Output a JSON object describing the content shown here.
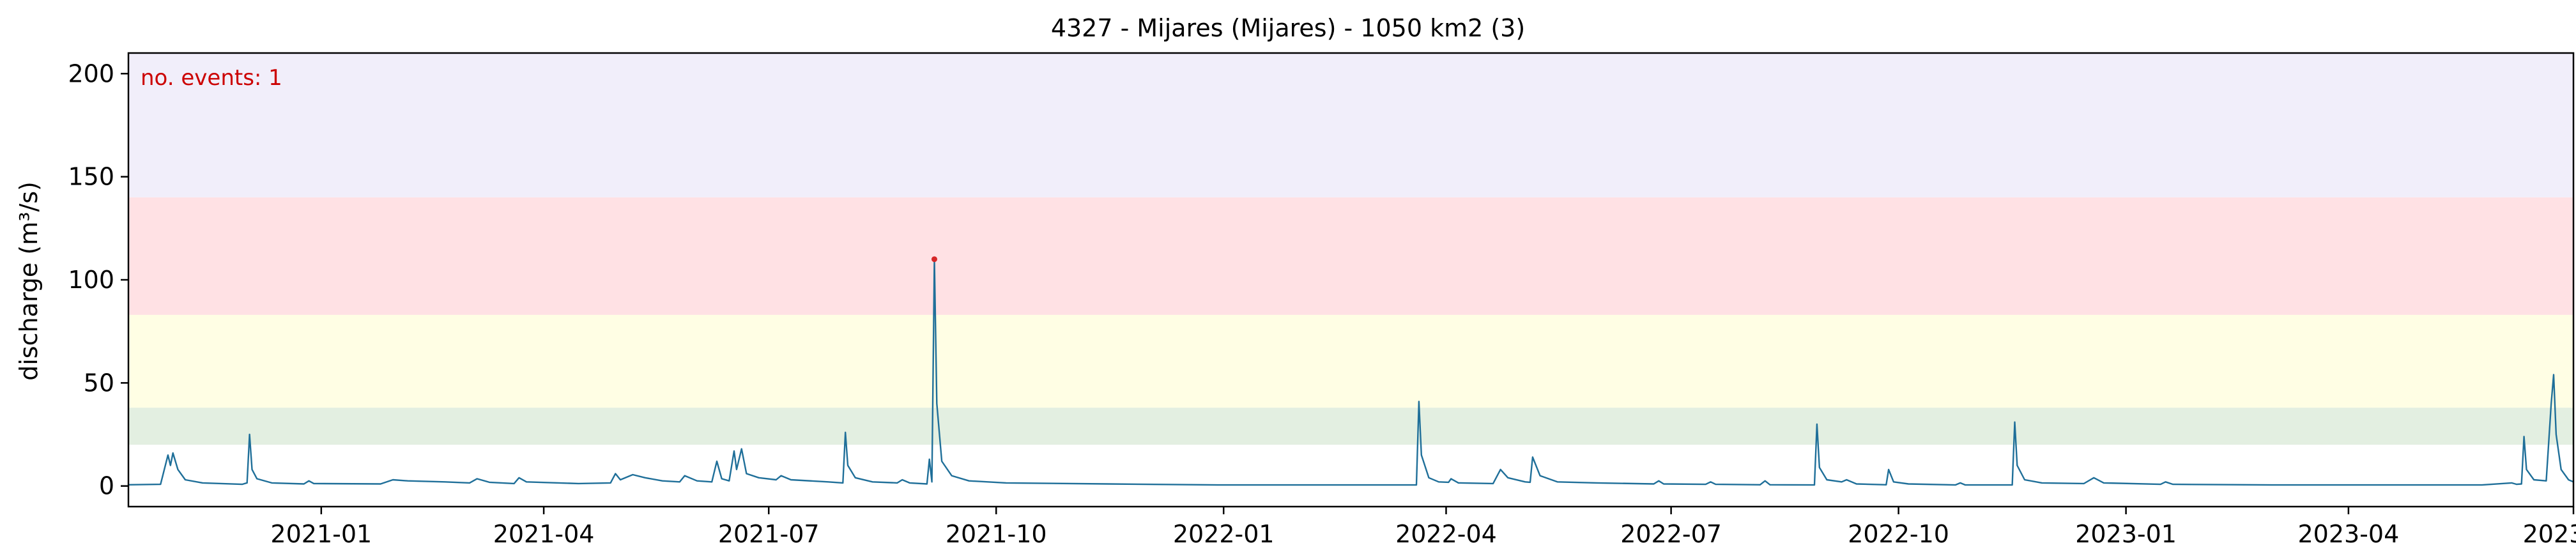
{
  "chart_data": {
    "type": "line",
    "title": "4327 - Mijares (Mijares) - 1050 km2 (3)",
    "xlabel": "",
    "ylabel": "discharge (m³/s)",
    "annotation": "no. events: 1",
    "xlim": [
      "2020-10-15",
      "2023-07-01"
    ],
    "ylim": [
      -10,
      210
    ],
    "yticks": [
      0,
      50,
      100,
      150,
      200
    ],
    "xticks": [
      {
        "date": "2021-01-01",
        "label": "2021-01"
      },
      {
        "date": "2021-04-01",
        "label": "2021-04"
      },
      {
        "date": "2021-07-01",
        "label": "2021-07"
      },
      {
        "date": "2021-10-01",
        "label": "2021-10"
      },
      {
        "date": "2022-01-01",
        "label": "2022-01"
      },
      {
        "date": "2022-04-01",
        "label": "2022-04"
      },
      {
        "date": "2022-07-01",
        "label": "2022-07"
      },
      {
        "date": "2022-10-01",
        "label": "2022-10"
      },
      {
        "date": "2023-01-01",
        "label": "2023-01"
      },
      {
        "date": "2023-04-01",
        "label": "2023-04"
      },
      {
        "date": "2023-07-01",
        "label": "2023-07"
      }
    ],
    "grid": false,
    "bands": [
      {
        "from": 20,
        "to": 38,
        "color": "#e3efe1"
      },
      {
        "from": 38,
        "to": 83,
        "color": "#fffee4"
      },
      {
        "from": 83,
        "to": 140,
        "color": "#ffe1e4"
      },
      {
        "from": 140,
        "to": 210,
        "color": "#f1eefa"
      }
    ],
    "series": [
      {
        "color": "#1f6f99",
        "points": [
          [
            "2020-10-15",
            0.6
          ],
          [
            "2020-10-28",
            0.8
          ],
          [
            "2020-10-31",
            15.0
          ],
          [
            "2020-11-01",
            10.0
          ],
          [
            "2020-11-02",
            16.0
          ],
          [
            "2020-11-04",
            8.0
          ],
          [
            "2020-11-07",
            3.0
          ],
          [
            "2020-11-14",
            1.5
          ],
          [
            "2020-11-30",
            0.8
          ],
          [
            "2020-12-02",
            1.5
          ],
          [
            "2020-12-03",
            25.0
          ],
          [
            "2020-12-04",
            8.0
          ],
          [
            "2020-12-06",
            3.5
          ],
          [
            "2020-12-12",
            1.5
          ],
          [
            "2020-12-25",
            1.0
          ],
          [
            "2020-12-27",
            2.5
          ],
          [
            "2020-12-29",
            1.2
          ],
          [
            "2021-01-25",
            1.0
          ],
          [
            "2021-01-30",
            3.0
          ],
          [
            "2021-02-05",
            2.5
          ],
          [
            "2021-02-20",
            2.0
          ],
          [
            "2021-03-02",
            1.5
          ],
          [
            "2021-03-05",
            3.5
          ],
          [
            "2021-03-10",
            1.8
          ],
          [
            "2021-03-20",
            1.2
          ],
          [
            "2021-03-22",
            4.0
          ],
          [
            "2021-03-25",
            2.0
          ],
          [
            "2021-04-15",
            1.2
          ],
          [
            "2021-04-28",
            1.5
          ],
          [
            "2021-04-30",
            6.0
          ],
          [
            "2021-05-02",
            3.0
          ],
          [
            "2021-05-07",
            5.5
          ],
          [
            "2021-05-12",
            4.0
          ],
          [
            "2021-05-19",
            2.5
          ],
          [
            "2021-05-26",
            2.0
          ],
          [
            "2021-05-28",
            5.0
          ],
          [
            "2021-06-02",
            2.5
          ],
          [
            "2021-06-08",
            2.0
          ],
          [
            "2021-06-10",
            12.0
          ],
          [
            "2021-06-12",
            3.5
          ],
          [
            "2021-06-15",
            2.5
          ],
          [
            "2021-06-17",
            17.0
          ],
          [
            "2021-06-18",
            8.0
          ],
          [
            "2021-06-20",
            18.0
          ],
          [
            "2021-06-22",
            6.0
          ],
          [
            "2021-06-27",
            4.0
          ],
          [
            "2021-07-04",
            3.0
          ],
          [
            "2021-07-06",
            5.0
          ],
          [
            "2021-07-10",
            3.0
          ],
          [
            "2021-07-25",
            2.0
          ],
          [
            "2021-07-31",
            1.5
          ],
          [
            "2021-08-01",
            26.0
          ],
          [
            "2021-08-02",
            10.0
          ],
          [
            "2021-08-05",
            4.0
          ],
          [
            "2021-08-12",
            2.0
          ],
          [
            "2021-08-22",
            1.5
          ],
          [
            "2021-08-24",
            3.0
          ],
          [
            "2021-08-27",
            1.5
          ],
          [
            "2021-09-03",
            1.0
          ],
          [
            "2021-09-04",
            13.0
          ],
          [
            "2021-09-05",
            2.0
          ],
          [
            "2021-09-06",
            110.0
          ],
          [
            "2021-09-07",
            40.0
          ],
          [
            "2021-09-09",
            12.0
          ],
          [
            "2021-09-13",
            5.0
          ],
          [
            "2021-09-20",
            2.5
          ],
          [
            "2021-10-05",
            1.5
          ],
          [
            "2021-11-15",
            1.0
          ],
          [
            "2021-12-31",
            0.5
          ],
          [
            "2022-03-20",
            0.5
          ],
          [
            "2022-03-21",
            41.0
          ],
          [
            "2022-03-22",
            15.0
          ],
          [
            "2022-03-25",
            4.0
          ],
          [
            "2022-03-29",
            2.0
          ],
          [
            "2022-04-02",
            1.8
          ],
          [
            "2022-04-03",
            3.5
          ],
          [
            "2022-04-06",
            1.5
          ],
          [
            "2022-04-20",
            1.2
          ],
          [
            "2022-04-23",
            8.0
          ],
          [
            "2022-04-26",
            4.0
          ],
          [
            "2022-05-03",
            2.0
          ],
          [
            "2022-05-05",
            1.8
          ],
          [
            "2022-05-06",
            14.0
          ],
          [
            "2022-05-09",
            5.0
          ],
          [
            "2022-05-16",
            2.0
          ],
          [
            "2022-06-01",
            1.5
          ],
          [
            "2022-06-24",
            1.0
          ],
          [
            "2022-06-26",
            2.5
          ],
          [
            "2022-06-28",
            1.0
          ],
          [
            "2022-07-15",
            0.8
          ],
          [
            "2022-07-17",
            2.0
          ],
          [
            "2022-07-19",
            0.8
          ],
          [
            "2022-08-06",
            0.6
          ],
          [
            "2022-08-08",
            2.5
          ],
          [
            "2022-08-10",
            0.6
          ],
          [
            "2022-08-28",
            0.5
          ],
          [
            "2022-08-29",
            30.0
          ],
          [
            "2022-08-30",
            9.0
          ],
          [
            "2022-09-02",
            3.0
          ],
          [
            "2022-09-08",
            2.0
          ],
          [
            "2022-09-10",
            3.0
          ],
          [
            "2022-09-14",
            1.0
          ],
          [
            "2022-09-26",
            0.6
          ],
          [
            "2022-09-27",
            8.0
          ],
          [
            "2022-09-29",
            2.0
          ],
          [
            "2022-10-05",
            1.0
          ],
          [
            "2022-10-24",
            0.5
          ],
          [
            "2022-10-26",
            1.5
          ],
          [
            "2022-10-28",
            0.5
          ],
          [
            "2022-11-16",
            0.5
          ],
          [
            "2022-11-17",
            31.0
          ],
          [
            "2022-11-18",
            10.0
          ],
          [
            "2022-11-21",
            3.0
          ],
          [
            "2022-11-28",
            1.5
          ],
          [
            "2022-12-15",
            1.2
          ],
          [
            "2022-12-19",
            4.0
          ],
          [
            "2022-12-23",
            1.5
          ],
          [
            "2023-01-15",
            0.8
          ],
          [
            "2023-01-17",
            2.0
          ],
          [
            "2023-01-20",
            0.8
          ],
          [
            "2023-03-01",
            0.5
          ],
          [
            "2023-05-25",
            0.5
          ],
          [
            "2023-06-06",
            1.5
          ],
          [
            "2023-06-08",
            0.8
          ],
          [
            "2023-06-10",
            1.0
          ],
          [
            "2023-06-11",
            24.0
          ],
          [
            "2023-06-12",
            8.0
          ],
          [
            "2023-06-15",
            3.0
          ],
          [
            "2023-06-20",
            2.5
          ],
          [
            "2023-06-22",
            40.0
          ],
          [
            "2023-06-23",
            54.0
          ],
          [
            "2023-06-24",
            25.0
          ],
          [
            "2023-06-26",
            8.0
          ],
          [
            "2023-06-29",
            3.0
          ],
          [
            "2023-07-01",
            2.0
          ]
        ]
      }
    ],
    "events": [
      {
        "date": "2021-09-06",
        "value": 110.0,
        "color": "#d62728"
      }
    ]
  }
}
